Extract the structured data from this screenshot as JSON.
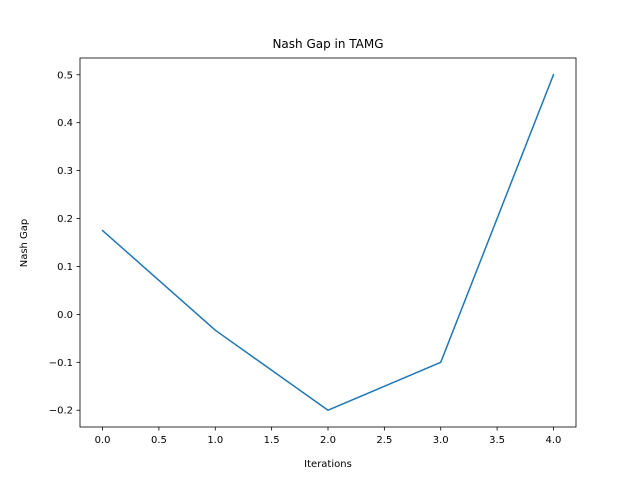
{
  "chart_data": {
    "type": "line",
    "title": "Nash Gap in TAMG",
    "xlabel": "Iterations",
    "ylabel": "Nash Gap",
    "xlim": [
      -0.2,
      4.2
    ],
    "ylim": [
      -0.235,
      0.535
    ],
    "x_ticks": [
      0.0,
      0.5,
      1.0,
      1.5,
      2.0,
      2.5,
      3.0,
      3.5,
      4.0
    ],
    "x_tick_labels": [
      "0.0",
      "0.5",
      "1.0",
      "1.5",
      "2.0",
      "2.5",
      "3.0",
      "3.5",
      "4.0"
    ],
    "y_ticks": [
      -0.2,
      -0.1,
      0.0,
      0.1,
      0.2,
      0.3,
      0.4,
      0.5
    ],
    "y_tick_labels": [
      "−0.2",
      "−0.1",
      "0.0",
      "0.1",
      "0.2",
      "0.3",
      "0.4",
      "0.5"
    ],
    "grid": false,
    "series": [
      {
        "color": "#1f77b4",
        "x": [
          0,
          1,
          2,
          3,
          4
        ],
        "y": [
          0.175,
          -0.033,
          -0.2,
          -0.1,
          0.5
        ]
      }
    ]
  }
}
